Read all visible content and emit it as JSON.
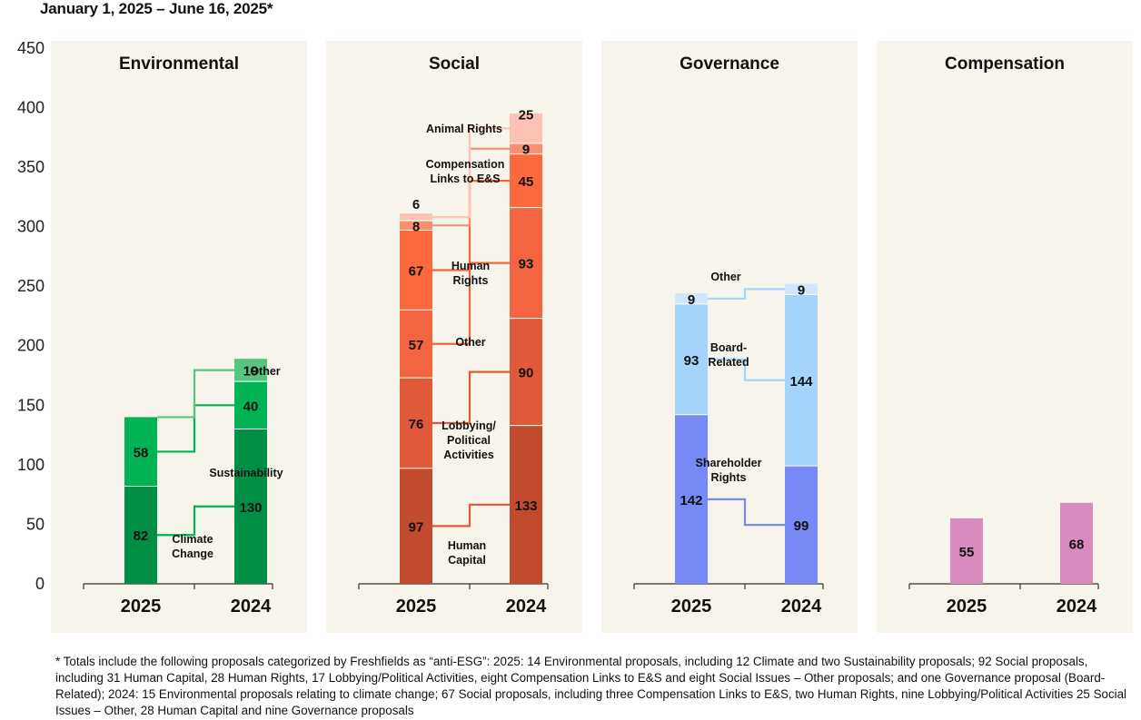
{
  "subtitle": "January 1, 2025 – June 16, 2025*",
  "footnote": "* Totals include the following proposals categorized by Freshfields as “anti-ESG”: 2025: 14 Environmental proposals, including 12 Climate and two Sustainability proposals; 92 Social proposals, including 31 Human Capital, 28 Human Rights, 17 Lobbying/Political Activities, eight Compensation Links to E&S and eight Social Issues – Other proposals; and one Governance proposal (Board-Related); 2024: 15 Environmental proposals relating to climate change; 67 Social proposals, including three Compensation Links to E&S, two Human Rights, nine Lobbying/Political Activities 25 Social Issues – Other, 28 Human Capital and nine Governance proposals",
  "chart_data": {
    "type": "bar",
    "stacked": true,
    "ylim": [
      0,
      450
    ],
    "yticks": [
      0,
      50,
      100,
      150,
      200,
      250,
      300,
      350,
      400,
      450
    ],
    "grid": false,
    "categories": [
      "2025",
      "2024"
    ],
    "panels": [
      {
        "title": "Environmental",
        "series": [
          {
            "name": "Climate Change",
            "label_lines": [
              "Climate",
              "Change"
            ],
            "color": "#008f45",
            "values": [
              82,
              130
            ]
          },
          {
            "name": "Sustainability",
            "label_lines": [
              "Sustainability"
            ],
            "color": "#00b456",
            "values": [
              58,
              40
            ]
          },
          {
            "name": "Other",
            "label_lines": [
              "Other"
            ],
            "color": "#57c47f",
            "values": [
              0,
              19
            ]
          }
        ]
      },
      {
        "title": "Social",
        "series": [
          {
            "name": "Human Capital",
            "label_lines": [
              "Human",
              "Capital"
            ],
            "color": "#c24b2e",
            "values": [
              97,
              133
            ]
          },
          {
            "name": "Lobbying/Political Activities",
            "label_lines": [
              "Lobbying/",
              "Political",
              "Activities"
            ],
            "color": "#e05a3a",
            "values": [
              76,
              90
            ]
          },
          {
            "name": "Other",
            "label_lines": [
              "Other"
            ],
            "color": "#f36540",
            "values": [
              57,
              93
            ]
          },
          {
            "name": "Human Rights",
            "label_lines": [
              "Human",
              "Rights"
            ],
            "color": "#fb6a3e",
            "values": [
              67,
              45
            ]
          },
          {
            "name": "Compensation Links to E&S",
            "label_lines": [
              "Compensation",
              "Links to E&S"
            ],
            "color": "#f6906f",
            "values": [
              8,
              9
            ]
          },
          {
            "name": "Animal Rights",
            "label_lines": [
              "Animal Rights"
            ],
            "color": "#fcc3b5",
            "values": [
              6,
              25
            ]
          }
        ]
      },
      {
        "title": "Governance",
        "series": [
          {
            "name": "Shareholder Rights",
            "label_lines": [
              "Shareholder",
              "Rights"
            ],
            "color": "#7789f4",
            "values": [
              142,
              99
            ]
          },
          {
            "name": "Board-Related",
            "label_lines": [
              "Board-",
              "Related"
            ],
            "color": "#a4d4fb",
            "values": [
              93,
              144
            ]
          },
          {
            "name": "Other",
            "label_lines": [
              "Other"
            ],
            "color": "#cfe6fb",
            "values": [
              9,
              9
            ]
          }
        ]
      },
      {
        "title": "Compensation",
        "series": [
          {
            "name": "Compensation",
            "label_lines": [],
            "color": "#d98bbf",
            "values": [
              55,
              68
            ]
          }
        ]
      }
    ]
  }
}
